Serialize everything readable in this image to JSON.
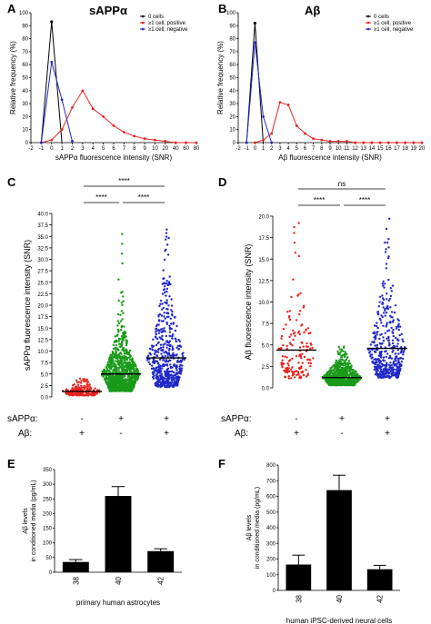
{
  "panels": {
    "A": {
      "letter": "A",
      "title": "sAPPα"
    },
    "B": {
      "letter": "B",
      "title": "Aβ"
    },
    "C": {
      "letter": "C"
    },
    "D": {
      "letter": "D"
    },
    "E": {
      "letter": "E"
    },
    "F": {
      "letter": "F"
    }
  },
  "group_labels": {
    "row1": "sAPPα:",
    "row2": "Aβ:",
    "C_row1": [
      "-",
      "+",
      "+"
    ],
    "C_row2": [
      "+",
      "-",
      "+"
    ],
    "D_row1": [
      "-",
      "+",
      "+"
    ],
    "D_row2": [
      "+",
      "-",
      "+"
    ]
  },
  "colors": {
    "zero": "#000000",
    "positive": "#e8231f",
    "negative": "#2128c8",
    "green": "#1a9a1a"
  },
  "chart_data": [
    {
      "id": "A",
      "type": "line",
      "title": "sAPPα",
      "xlabel": "sAPPα fluorescence intensity (SNR)",
      "ylabel": "Relative frequency (%)",
      "xlim": [
        -2,
        80
      ],
      "ylim": [
        0,
        100
      ],
      "x_ticks": [
        "-2",
        "-1",
        "0",
        "1",
        "2",
        "3",
        "4",
        "5",
        "6",
        "7",
        "8",
        "9",
        "10",
        "20",
        "40",
        "60",
        "80"
      ],
      "y_ticks": [
        "0",
        "10",
        "20",
        "30",
        "40",
        "50",
        "60",
        "70",
        "80",
        "90",
        "100"
      ],
      "legend": "top-right",
      "series": [
        {
          "name": "0 cells",
          "color": "#000000",
          "x": [
            "-1",
            "0",
            "1"
          ],
          "y": [
            0,
            93,
            0
          ]
        },
        {
          "name": "≥1 cell, positive",
          "color": "#e8231f",
          "x": [
            "-1",
            "0",
            "1",
            "2",
            "3",
            "4",
            "5",
            "6",
            "7",
            "8",
            "9",
            "10",
            "20",
            "40",
            "60",
            "80"
          ],
          "y": [
            0,
            2,
            10,
            27,
            40,
            26,
            20,
            13,
            8,
            5,
            3,
            2,
            1,
            0,
            0,
            0
          ]
        },
        {
          "name": "≥1 cell, negative",
          "color": "#2128c8",
          "x": [
            "-1",
            "0",
            "1",
            "2"
          ],
          "y": [
            0,
            62,
            33,
            1
          ]
        }
      ]
    },
    {
      "id": "B",
      "type": "line",
      "title": "Aβ",
      "xlabel": "Aβ fluorescence intensity (SNR)",
      "ylabel": "Relative frequency (%)",
      "xlim": [
        -2,
        20
      ],
      "ylim": [
        0,
        100
      ],
      "x_ticks": [
        "-2",
        "-1",
        "0",
        "1",
        "2",
        "3",
        "4",
        "5",
        "6",
        "7",
        "8",
        "9",
        "10",
        "11",
        "12",
        "13",
        "14",
        "15",
        "16",
        "17",
        "18",
        "19",
        "20"
      ],
      "y_ticks": [
        "0",
        "10",
        "20",
        "30",
        "40",
        "50",
        "60",
        "70",
        "80",
        "90",
        "100"
      ],
      "legend": "top-right",
      "series": [
        {
          "name": "0 cells",
          "color": "#000000",
          "x": [
            "-1",
            "0",
            "1"
          ],
          "y": [
            0,
            92,
            0
          ]
        },
        {
          "name": "≥1 cell, positive",
          "color": "#e8231f",
          "x": [
            "0",
            "1",
            "2",
            "3",
            "4",
            "5",
            "6",
            "7",
            "8",
            "9",
            "10",
            "11",
            "12",
            "13",
            "14",
            "15",
            "16",
            "17",
            "18",
            "19",
            "20"
          ],
          "y": [
            0,
            2,
            7,
            31,
            29,
            13,
            7,
            3,
            2,
            1,
            1,
            1,
            0,
            0,
            0,
            0,
            0,
            0,
            0,
            0,
            0
          ]
        },
        {
          "name": "≥1 cell, negative",
          "color": "#2128c8",
          "x": [
            "-1",
            "0",
            "1",
            "2"
          ],
          "y": [
            0,
            77,
            20,
            0
          ]
        }
      ]
    },
    {
      "id": "C",
      "type": "scatter",
      "ylabel": "sAPPα fluorescence intensity (SNR)",
      "ylim": [
        0,
        40
      ],
      "y_ticks": [
        "0.0",
        "2.5",
        "5.0",
        "7.5",
        "10.0",
        "12.5",
        "15.0",
        "17.5",
        "20.0",
        "22.5",
        "25.0",
        "27.5",
        "30.0",
        "32.5",
        "35.0",
        "37.5",
        "40.0"
      ],
      "groups": [
        {
          "color": "#e8231f",
          "mean": 1.2,
          "max": 4.0,
          "n": 230
        },
        {
          "color": "#1a9a1a",
          "mean": 5.0,
          "max": 35.5,
          "n": 1100
        },
        {
          "color": "#2128c8",
          "mean": 8.5,
          "max": 36.5,
          "n": 550
        }
      ],
      "significance": [
        {
          "pair": [
            1,
            2
          ],
          "label": "****"
        },
        {
          "pair": [
            2,
            3
          ],
          "label": "****"
        },
        {
          "pair": [
            1,
            3
          ],
          "label": "****"
        }
      ]
    },
    {
      "id": "D",
      "type": "scatter",
      "ylabel": "Aβ fluorescence intensity (SNR)",
      "ylim": [
        0,
        20
      ],
      "y_ticks": [
        "0.0",
        "2.5",
        "5.0",
        "7.5",
        "10.0",
        "12.5",
        "15.0",
        "17.5",
        "20.0"
      ],
      "groups": [
        {
          "color": "#e8231f",
          "mean": 4.4,
          "max": 19.2,
          "n": 150
        },
        {
          "color": "#1a9a1a",
          "mean": 1.2,
          "max": 4.8,
          "n": 900
        },
        {
          "color": "#2128c8",
          "mean": 4.6,
          "max": 19.7,
          "n": 420
        }
      ],
      "significance": [
        {
          "pair": [
            1,
            2
          ],
          "label": "****"
        },
        {
          "pair": [
            2,
            3
          ],
          "label": "****"
        },
        {
          "pair": [
            1,
            3
          ],
          "label": "ns"
        }
      ]
    },
    {
      "id": "E",
      "type": "bar",
      "ylabel": "Aβ levels\nin conditioned media (pg/mL)",
      "xlabel": "primary human astrocytes",
      "categories": [
        "38",
        "40",
        "42"
      ],
      "values": [
        35,
        260,
        72
      ],
      "errors": [
        8,
        32,
        8
      ],
      "ylim": [
        0,
        350
      ],
      "y_ticks": [
        "0",
        "50",
        "100",
        "150",
        "200",
        "250",
        "300",
        "350"
      ]
    },
    {
      "id": "F",
      "type": "bar",
      "ylabel": "Aβ levels\nin conditioned media (pg/mL)",
      "xlabel": "human iPSC-derived neural cells",
      "categories": [
        "38",
        "40",
        "42"
      ],
      "values": [
        165,
        640,
        135
      ],
      "errors": [
        60,
        95,
        25
      ],
      "ylim": [
        0,
        800
      ],
      "y_ticks": [
        "0",
        "100",
        "200",
        "300",
        "400",
        "500",
        "600",
        "700",
        "800"
      ]
    }
  ]
}
